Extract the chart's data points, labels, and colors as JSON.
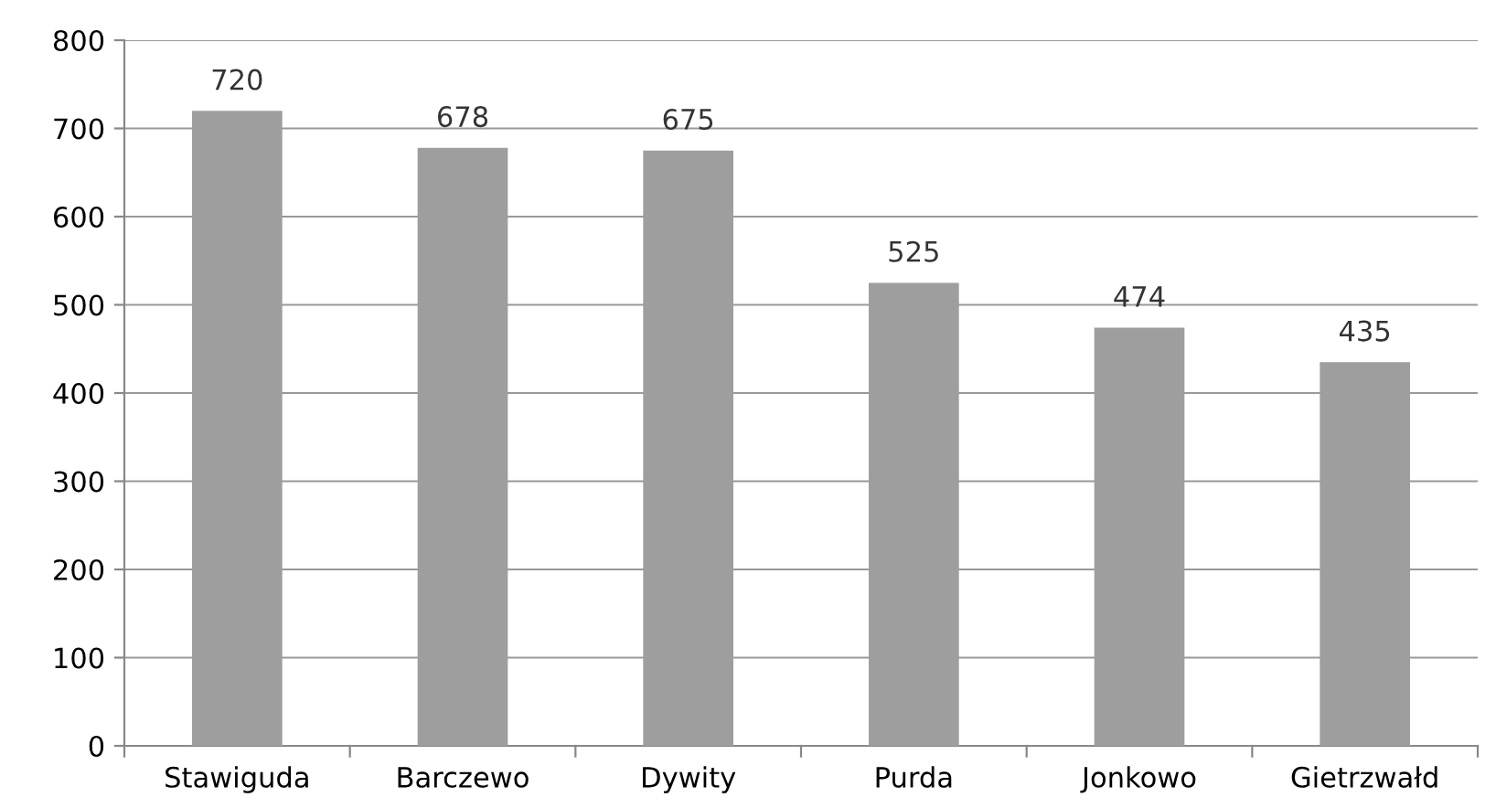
{
  "chart_data": {
    "type": "bar",
    "categories": [
      "Stawiguda",
      "Barczewo",
      "Dywity",
      "Purda",
      "Jonkowo",
      "Gietrzwałd"
    ],
    "values": [
      720,
      678,
      675,
      525,
      474,
      435
    ],
    "color": "#9e9e9e",
    "ylim": [
      0,
      800
    ],
    "yticks": [
      0,
      100,
      200,
      300,
      400,
      500,
      600,
      700,
      800
    ],
    "grid": "y",
    "data_labels": true
  }
}
